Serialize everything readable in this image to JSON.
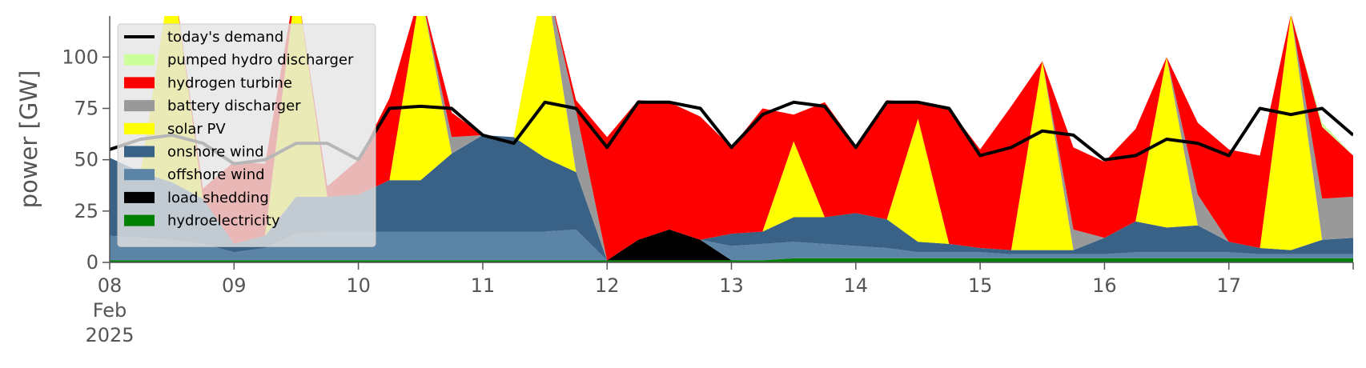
{
  "chart_data": {
    "type": "area",
    "title": "",
    "xlabel": "",
    "ylabel": "power [GW]",
    "ylim": [
      0,
      120
    ],
    "yticks": [
      0,
      25,
      50,
      75,
      100
    ],
    "xlim": [
      "2025-02-08T00:00",
      "2025-02-18T00:00"
    ],
    "x_tick_labels": [
      "08\nFeb\n2025",
      "09",
      "10",
      "11",
      "12",
      "13",
      "14",
      "15",
      "16",
      "17"
    ],
    "grid": false,
    "legend": {
      "placement": "top-left"
    },
    "x": [
      "2025-02-08T00:00",
      "2025-02-08T06:00",
      "2025-02-08T12:00",
      "2025-02-08T18:00",
      "2025-02-09T00:00",
      "2025-02-09T06:00",
      "2025-02-09T12:00",
      "2025-02-09T18:00",
      "2025-02-10T00:00",
      "2025-02-10T06:00",
      "2025-02-10T12:00",
      "2025-02-10T18:00",
      "2025-02-11T00:00",
      "2025-02-11T06:00",
      "2025-02-11T12:00",
      "2025-02-11T18:00",
      "2025-02-12T00:00",
      "2025-02-12T06:00",
      "2025-02-12T12:00",
      "2025-02-12T18:00",
      "2025-02-13T00:00",
      "2025-02-13T06:00",
      "2025-02-13T12:00",
      "2025-02-13T18:00",
      "2025-02-14T00:00",
      "2025-02-14T06:00",
      "2025-02-14T12:00",
      "2025-02-14T18:00",
      "2025-02-15T00:00",
      "2025-02-15T06:00",
      "2025-02-15T12:00",
      "2025-02-15T18:00",
      "2025-02-16T00:00",
      "2025-02-16T06:00",
      "2025-02-16T12:00",
      "2025-02-16T18:00",
      "2025-02-17T00:00",
      "2025-02-17T06:00",
      "2025-02-17T12:00",
      "2025-02-17T18:00",
      "2025-02-18T00:00"
    ],
    "series": [
      {
        "name": "hydroelectricity",
        "color": "#008000",
        "values": [
          1,
          1,
          1,
          1,
          1,
          1,
          1,
          1,
          1,
          1,
          1,
          1,
          1,
          1,
          1,
          1,
          1,
          1,
          1,
          1,
          1,
          1,
          2,
          2,
          2,
          2,
          2,
          2,
          2,
          2,
          2,
          2,
          2,
          2,
          2,
          2,
          2,
          2,
          2,
          2,
          2
        ]
      },
      {
        "name": "load shedding",
        "color": "#000000",
        "values": [
          0,
          0,
          0,
          0,
          0,
          0,
          0,
          0,
          0,
          0,
          0,
          0,
          0,
          0,
          0,
          0,
          0,
          10,
          15,
          10,
          0,
          0,
          0,
          0,
          0,
          0,
          0,
          0,
          0,
          0,
          0,
          0,
          0,
          0,
          0,
          0,
          0,
          0,
          0,
          0,
          0
        ]
      },
      {
        "name": "offshore wind",
        "color": "#5b84a6",
        "values": [
          12,
          11,
          10,
          8,
          4,
          6,
          13,
          14,
          14,
          14,
          14,
          14,
          14,
          14,
          14,
          15,
          0,
          0,
          0,
          0,
          7,
          8,
          8,
          7,
          6,
          5,
          3,
          3,
          3,
          2,
          2,
          2,
          2,
          3,
          3,
          3,
          3,
          2,
          2,
          2,
          2
        ]
      },
      {
        "name": "onshore wind",
        "color": "#3a6286",
        "values": [
          38,
          32,
          28,
          22,
          4,
          6,
          18,
          17,
          18,
          25,
          25,
          38,
          47,
          46,
          36,
          28,
          0,
          0,
          0,
          0,
          6,
          6,
          12,
          13,
          16,
          14,
          5,
          4,
          2,
          2,
          2,
          2,
          8,
          15,
          12,
          13,
          5,
          3,
          2,
          7,
          8
        ]
      },
      {
        "name": "solar PV",
        "color": "#ffff00",
        "values": [
          0,
          0,
          105,
          0,
          0,
          0,
          105,
          0,
          0,
          0,
          92,
          0,
          0,
          0,
          90,
          0,
          0,
          0,
          0,
          0,
          0,
          0,
          37,
          0,
          0,
          0,
          60,
          0,
          0,
          0,
          92,
          0,
          0,
          0,
          83,
          0,
          0,
          0,
          115,
          0,
          0
        ]
      },
      {
        "name": "battery discharger",
        "color": "#999999",
        "values": [
          0,
          0,
          0,
          0,
          0,
          0,
          0,
          0,
          0,
          0,
          0,
          8,
          0,
          0,
          0,
          30,
          0,
          0,
          0,
          0,
          0,
          0,
          0,
          0,
          0,
          0,
          0,
          0,
          0,
          0,
          0,
          10,
          0,
          0,
          0,
          15,
          0,
          0,
          0,
          20,
          20
        ]
      },
      {
        "name": "hydrogen turbine",
        "color": "#ff0000",
        "values": [
          0,
          0,
          0,
          5,
          40,
          35,
          0,
          5,
          17,
          40,
          0,
          12,
          0,
          0,
          0,
          5,
          60,
          68,
          62,
          60,
          42,
          60,
          13,
          56,
          33,
          58,
          8,
          66,
          48,
          70,
          0,
          40,
          37,
          45,
          0,
          35,
          45,
          45,
          0,
          35,
          20
        ]
      },
      {
        "name": "pumped hydro discharger",
        "color": "#ccff99",
        "values": [
          0,
          0,
          0,
          0,
          0,
          0,
          0,
          0,
          0,
          0,
          0,
          0,
          0,
          0,
          0,
          0,
          0,
          0,
          0,
          0,
          0,
          0,
          0,
          0,
          0,
          0,
          0,
          0,
          0,
          0,
          0,
          0,
          0,
          0,
          0,
          0,
          0,
          0,
          0,
          2,
          0
        ]
      }
    ],
    "demand": {
      "name": "today's demand",
      "color": "#000000",
      "values": [
        55,
        60,
        62,
        58,
        48,
        50,
        58,
        58,
        50,
        75,
        76,
        75,
        62,
        58,
        78,
        75,
        56,
        78,
        78,
        75,
        56,
        72,
        78,
        76,
        56,
        78,
        78,
        75,
        52,
        56,
        64,
        62,
        50,
        52,
        60,
        58,
        52,
        75,
        72,
        75,
        62
      ]
    },
    "legend_entries": [
      {
        "label": "today's demand",
        "color": "#000000",
        "kind": "line"
      },
      {
        "label": "pumped hydro discharger",
        "color": "#ccff99",
        "kind": "patch"
      },
      {
        "label": "hydrogen turbine",
        "color": "#ff0000",
        "kind": "patch"
      },
      {
        "label": "battery discharger",
        "color": "#999999",
        "kind": "patch"
      },
      {
        "label": "solar PV",
        "color": "#ffff00",
        "kind": "patch"
      },
      {
        "label": "onshore wind",
        "color": "#3a6286",
        "kind": "patch"
      },
      {
        "label": "offshore wind",
        "color": "#5b84a6",
        "kind": "patch"
      },
      {
        "label": "load shedding",
        "color": "#000000",
        "kind": "patch"
      },
      {
        "label": "hydroelectricity",
        "color": "#008000",
        "kind": "patch"
      }
    ]
  }
}
